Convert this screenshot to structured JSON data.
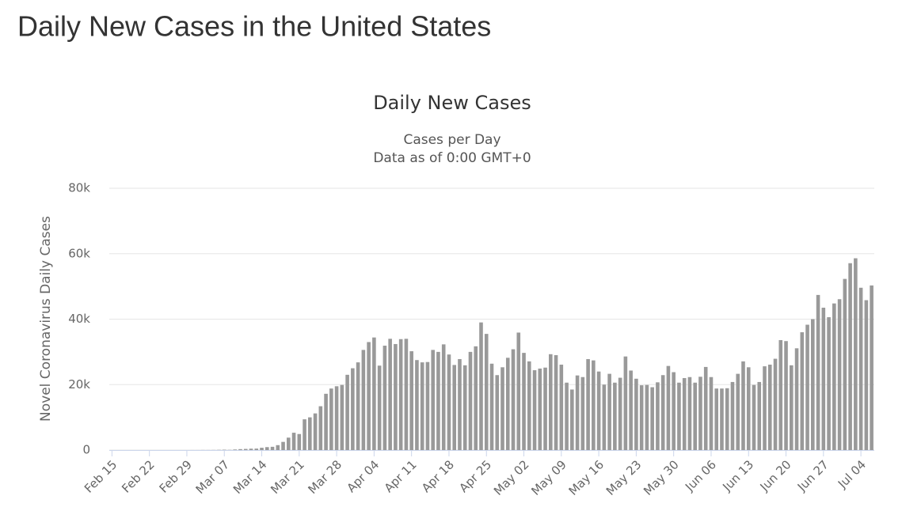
{
  "header": {
    "title": "Daily New Cases in the United States"
  },
  "chart_data": {
    "type": "bar",
    "title": "Daily New Cases",
    "subtitle": [
      "Cases per Day",
      "Data as of 0:00 GMT+0"
    ],
    "y_label": "Novel Coronavirus Daily Cases",
    "categories": [
      "Feb 15",
      null,
      null,
      null,
      null,
      null,
      null,
      "Feb 22",
      null,
      null,
      null,
      null,
      null,
      null,
      "Feb 29",
      null,
      null,
      null,
      null,
      null,
      null,
      "Mar 07",
      null,
      null,
      null,
      null,
      null,
      null,
      "Mar 14",
      null,
      null,
      null,
      null,
      null,
      null,
      "Mar 21",
      null,
      null,
      null,
      null,
      null,
      null,
      "Mar 28",
      null,
      null,
      null,
      null,
      null,
      null,
      "Apr 04",
      null,
      null,
      null,
      null,
      null,
      null,
      "Apr 11",
      null,
      null,
      null,
      null,
      null,
      null,
      "Apr 18",
      null,
      null,
      null,
      null,
      null,
      null,
      "Apr 25",
      null,
      null,
      null,
      null,
      null,
      null,
      "May 02",
      null,
      null,
      null,
      null,
      null,
      null,
      "May 09",
      null,
      null,
      null,
      null,
      null,
      null,
      "May 16",
      null,
      null,
      null,
      null,
      null,
      null,
      "May 23",
      null,
      null,
      null,
      null,
      null,
      null,
      "May 30",
      null,
      null,
      null,
      null,
      null,
      null,
      "Jun 06",
      null,
      null,
      null,
      null,
      null,
      null,
      "Jun 13",
      null,
      null,
      null,
      null,
      null,
      null,
      "Jun 20",
      null,
      null,
      null,
      null,
      null,
      null,
      "Jun 27",
      null,
      null,
      null,
      null,
      null,
      null,
      "Jul 04",
      null,
      null
    ],
    "values": [
      0,
      0,
      0,
      0,
      0,
      0,
      0,
      0,
      0,
      0,
      0,
      0,
      0,
      0,
      3,
      8,
      6,
      23,
      20,
      31,
      68,
      117,
      65,
      176,
      289,
      349,
      425,
      450,
      700,
      900,
      1000,
      1500,
      2500,
      3800,
      5300,
      4900,
      9400,
      10000,
      11200,
      13400,
      17200,
      18800,
      19500,
      19900,
      23000,
      25000,
      26800,
      30600,
      33000,
      34400,
      25800,
      31900,
      34000,
      32400,
      33900,
      34000,
      30200,
      27500,
      26800,
      26900,
      30600,
      30000,
      32300,
      29200,
      26000,
      27800,
      25900,
      30000,
      31700,
      39000,
      35500,
      26400,
      22900,
      25300,
      28200,
      30800,
      35900,
      29700,
      27100,
      24400,
      24900,
      25200,
      29300,
      29000,
      26100,
      20600,
      18500,
      22800,
      22300,
      27800,
      27400,
      24000,
      20000,
      23300,
      20600,
      22100,
      28600,
      24300,
      21800,
      19800,
      19900,
      19200,
      20700,
      22900,
      25700,
      23800,
      20600,
      22000,
      22300,
      20600,
      22400,
      25400,
      22300,
      18800,
      18800,
      18900,
      20800,
      23300,
      27100,
      25300,
      19900,
      20800,
      25600,
      26100,
      27900,
      33600,
      33300,
      25900,
      31100,
      36000,
      38300,
      40000,
      47400,
      43500,
      40600,
      44800,
      46100,
      52300,
      57100,
      58600,
      49600,
      45800,
      50300
    ],
    "color": "#999999",
    "ylim": [
      0,
      80000
    ],
    "yticks": [
      0,
      {
        "value": 20000,
        "label": "20k"
      },
      {
        "value": 40000,
        "label": "40k"
      },
      {
        "value": 60000,
        "label": "60k"
      },
      {
        "value": 80000,
        "label": "80k"
      }
    ],
    "grid": true
  }
}
